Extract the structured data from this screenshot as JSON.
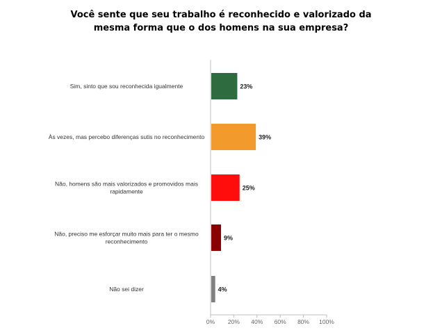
{
  "chart_data": {
    "type": "bar",
    "orientation": "horizontal",
    "title_lines": [
      "Você sente que seu trabalho é reconhecido e valorizado da",
      "mesma forma que o dos homens na sua empresa?"
    ],
    "categories": [
      [
        "Sim, sinto que sou reconhecida igualmente"
      ],
      [
        "Às vezes, mas percebo diferenças sutis no reconhecimento"
      ],
      [
        "Não, homens são mais valorizados e promovidos mais",
        "rapidamente"
      ],
      [
        "Não, preciso me esforçar muito mais para ter o mesmo",
        "reconhecimento"
      ],
      [
        "Não sei dizer"
      ]
    ],
    "values": [
      23,
      39,
      25,
      9,
      4
    ],
    "value_labels": [
      "23%",
      "39%",
      "25%",
      "9%",
      "4%"
    ],
    "colors": [
      "#2e6b3e",
      "#f39a2d",
      "#ff0d0d",
      "#8b0000",
      "#808080"
    ],
    "xlim": [
      0,
      100
    ],
    "x_ticks": [
      "0%",
      "20%",
      "40%",
      "60%",
      "80%",
      "100%"
    ],
    "xlabel": "",
    "ylabel": "",
    "grid": false
  }
}
